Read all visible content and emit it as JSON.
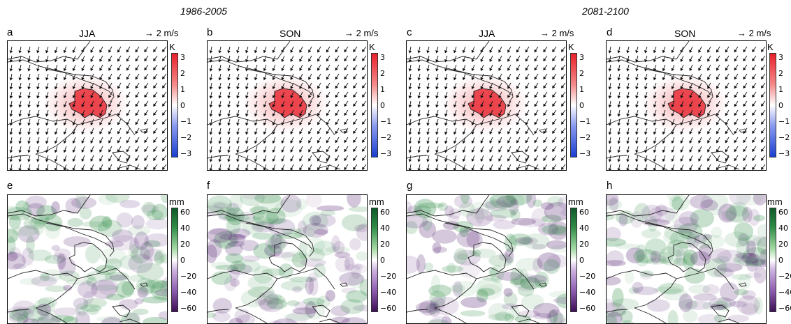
{
  "periods": [
    "1986-2005",
    "2081-2100"
  ],
  "temperature_panels": [
    {
      "letter": "a",
      "season": "JJA",
      "arrow_key": "2 m/s",
      "unit": "K"
    },
    {
      "letter": "b",
      "season": "SON",
      "arrow_key": "2 m/s",
      "unit": "K"
    },
    {
      "letter": "c",
      "season": "JJA",
      "arrow_key": "2 m/s",
      "unit": "K"
    },
    {
      "letter": "d",
      "season": "SON",
      "arrow_key": "2 m/s",
      "unit": "K"
    }
  ],
  "precip_panels": [
    {
      "letter": "e",
      "unit": "mm"
    },
    {
      "letter": "f",
      "unit": "mm"
    },
    {
      "letter": "g",
      "unit": "mm"
    },
    {
      "letter": "h",
      "unit": "mm"
    }
  ],
  "temp_colorbar_ticks": [
    "3",
    "2",
    "1",
    "0",
    "−1",
    "−2",
    "−3"
  ],
  "precip_colorbar_ticks": [
    "60",
    "40",
    "20",
    "0",
    "−20",
    "−40",
    "−60"
  ],
  "colors": {
    "temp_pos": "#e8202a",
    "temp_neg": "#1a3fd0",
    "precip_pos": "#2e8b45",
    "precip_neg": "#5b2a78"
  }
}
